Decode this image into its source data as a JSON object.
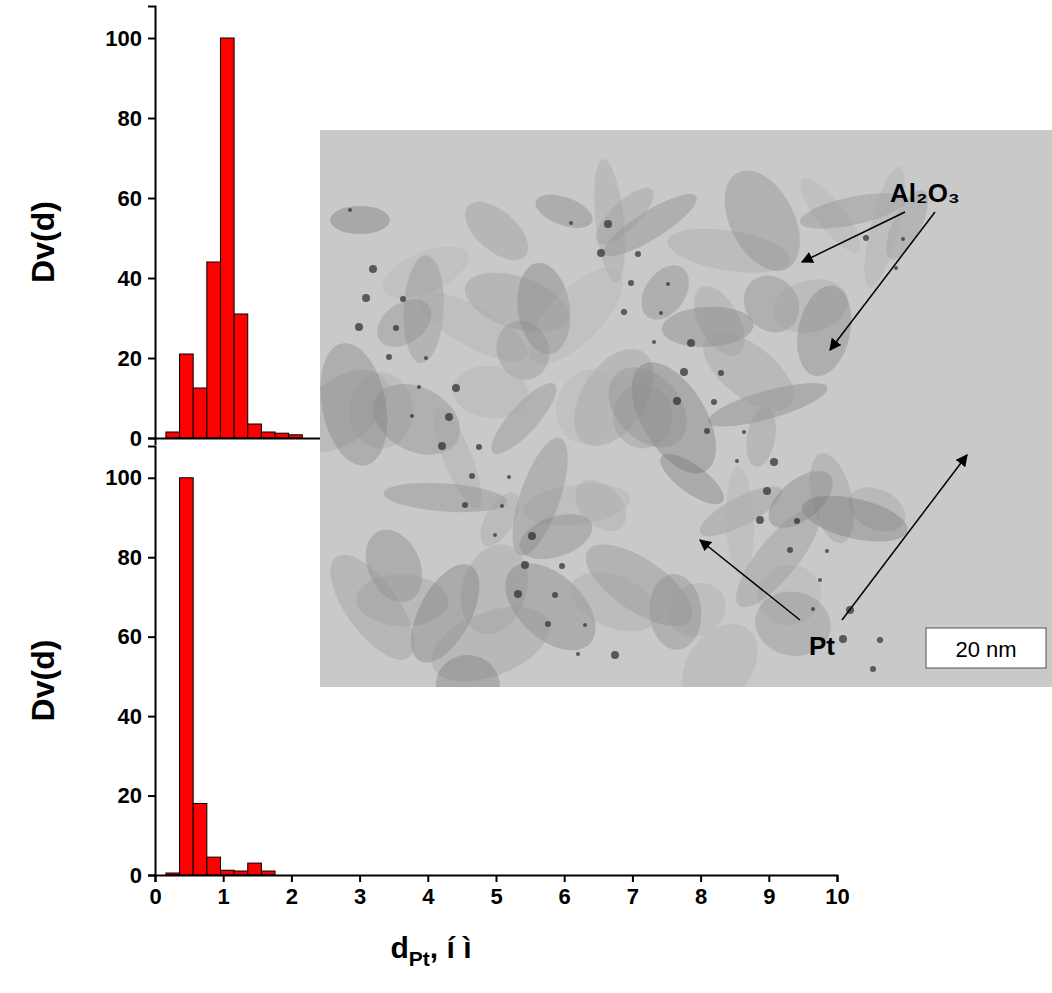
{
  "chart_data": [
    {
      "type": "histogram",
      "y_label": "Dv(d)",
      "bins": [
        0.16,
        0.36,
        0.56,
        0.76,
        0.96,
        1.16,
        1.36,
        1.56,
        1.76,
        1.96,
        2.16
      ],
      "counts": [
        1.5,
        21,
        12.5,
        44,
        100,
        31,
        3.5,
        1.5,
        1.2,
        0.8
      ],
      "color": "#ff0000",
      "xlim": [
        0,
        10
      ],
      "xticks": [],
      "ylim": [
        0,
        108
      ],
      "yticks": [
        0,
        20,
        40,
        60,
        80,
        100
      ],
      "tick_labels": "y"
    },
    {
      "type": "histogram",
      "x_label": [
        "d",
        "Pt",
        ", í ì"
      ],
      "y_label": "Dv(d)",
      "bins": [
        0.16,
        0.36,
        0.56,
        0.76,
        0.96,
        1.16,
        1.36,
        1.56,
        1.76
      ],
      "counts": [
        0.5,
        100,
        18,
        4.5,
        1.2,
        1,
        3,
        1
      ],
      "color": "#ff0000",
      "xlim": [
        0,
        10
      ],
      "xticks": [
        0,
        1,
        2,
        3,
        4,
        5,
        6,
        7,
        8,
        9,
        10
      ],
      "ylim": [
        0,
        108
      ],
      "yticks": [
        0,
        20,
        40,
        60,
        80,
        100
      ]
    }
  ],
  "image": {
    "annotations": [
      "Al₂O₃",
      "Pt",
      "20 nm"
    ]
  }
}
